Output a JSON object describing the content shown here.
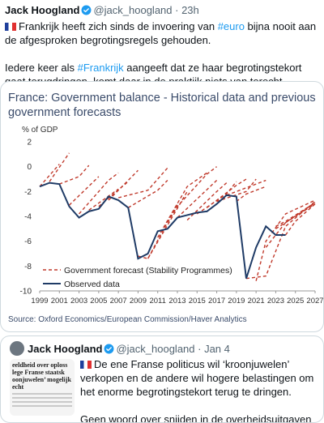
{
  "tweet": {
    "author_name": "Jack Hoogland",
    "handle": "@jack_hoogland",
    "time": "23h",
    "line1_pre": "Frankrijk heeft zich sinds de invoering van ",
    "line1_tag": "#euro",
    "line1_post": " bijna nooit aan de afgesproken begrotingsregels gehouden.",
    "line2_pre": "Iedere keer als ",
    "line2_tag": "#Frankrijk",
    "line2_post": " aangeeft dat ze haar begrotingstekort gaat terugdringen, komt daar in de praktijk niets van terecht."
  },
  "chart_image": {
    "title_line1": "France: Government balance - Historical data and previous",
    "title_line2": "government forecasts",
    "unit": "% of GDP",
    "legend_forecast": "Government forecast (Stability Programmes)",
    "legend_observed": "Observed data",
    "source": "Source: Oxford Economics/European Commission/Haver Analytics"
  },
  "chart_data": {
    "type": "line",
    "title": "France: Government balance - Historical data and previous government forecasts",
    "ylabel": "% of GDP",
    "xlim": [
      1999,
      2027
    ],
    "ylim": [
      -10,
      2
    ],
    "x_ticks": [
      1999,
      2001,
      2003,
      2005,
      2007,
      2009,
      2011,
      2013,
      2015,
      2017,
      2019,
      2021,
      2023,
      2025,
      2027
    ],
    "y_ticks": [
      2,
      0,
      -2,
      -4,
      -6,
      -8,
      -10
    ],
    "colors": {
      "forecast": "#c0392b",
      "observed": "#1f3b66"
    },
    "series": [
      {
        "name": "Observed data",
        "points": [
          [
            1999,
            -1.6
          ],
          [
            2000,
            -1.3
          ],
          [
            2001,
            -1.4
          ],
          [
            2002,
            -3.2
          ],
          [
            2003,
            -4.1
          ],
          [
            2004,
            -3.6
          ],
          [
            2005,
            -3.4
          ],
          [
            2006,
            -2.4
          ],
          [
            2007,
            -2.7
          ],
          [
            2008,
            -3.3
          ],
          [
            2009,
            -7.4
          ],
          [
            2010,
            -7.0
          ],
          [
            2011,
            -5.2
          ],
          [
            2012,
            -5.0
          ],
          [
            2013,
            -4.1
          ],
          [
            2014,
            -3.9
          ],
          [
            2015,
            -3.7
          ],
          [
            2016,
            -3.6
          ],
          [
            2017,
            -3.0
          ],
          [
            2018,
            -2.3
          ],
          [
            2019,
            -2.4
          ],
          [
            2020,
            -9.0
          ],
          [
            2021,
            -6.5
          ],
          [
            2022,
            -4.8
          ],
          [
            2023,
            -5.5
          ],
          [
            2024,
            -5.5
          ]
        ]
      },
      {
        "name": "Government forecast (Stability Programmes)",
        "forecasts": [
          [
            [
              1999,
              -1.6
            ],
            [
              2001,
              0.2
            ]
          ],
          [
            [
              2000,
              -1.2
            ],
            [
              2002,
              1.1
            ]
          ],
          [
            [
              2001,
              -1.4
            ],
            [
              2003,
              -0.8
            ],
            [
              2004,
              0.1
            ]
          ],
          [
            [
              2002,
              -3.1
            ],
            [
              2005,
              -0.8
            ]
          ],
          [
            [
              2003,
              -3.8
            ],
            [
              2006,
              -1.1
            ],
            [
              2007,
              -0.5
            ]
          ],
          [
            [
              2004,
              -3.5
            ],
            [
              2007,
              -1.8
            ]
          ],
          [
            [
              2005,
              -3.2
            ],
            [
              2008,
              -1.2
            ]
          ],
          [
            [
              2006,
              -2.7
            ],
            [
              2009,
              -0.3
            ]
          ],
          [
            [
              2007,
              -2.5
            ],
            [
              2010,
              -1.9
            ],
            [
              2012,
              -0.1
            ]
          ],
          [
            [
              2008,
              -3.3
            ],
            [
              2011,
              -1.9
            ],
            [
              2012,
              -1.1
            ]
          ],
          [
            [
              2009,
              -7.2
            ],
            [
              2010,
              -7.4
            ],
            [
              2013,
              -3.0
            ]
          ],
          [
            [
              2010,
              -7.4
            ],
            [
              2014,
              -2.0
            ]
          ],
          [
            [
              2011,
              -5.7
            ],
            [
              2014,
              -1.6
            ],
            [
              2016,
              -0.5
            ]
          ],
          [
            [
              2012,
              -4.5
            ],
            [
              2013,
              -3.2
            ],
            [
              2016,
              -0.6
            ],
            [
              2017,
              0.0
            ]
          ],
          [
            [
              2013,
              -4.1
            ],
            [
              2017,
              -1.1
            ]
          ],
          [
            [
              2014,
              -4.3
            ],
            [
              2017,
              -2.0
            ],
            [
              2018,
              -1.3
            ]
          ],
          [
            [
              2015,
              -3.8
            ],
            [
              2018,
              -2.2
            ],
            [
              2019,
              -1.2
            ]
          ],
          [
            [
              2016,
              -3.3
            ],
            [
              2019,
              -1.5
            ],
            [
              2020,
              -1.0
            ]
          ],
          [
            [
              2017,
              -2.8
            ],
            [
              2020,
              -2.0
            ],
            [
              2021,
              -1.0
            ]
          ],
          [
            [
              2018,
              -2.3
            ],
            [
              2022,
              -1.1
            ]
          ],
          [
            [
              2019,
              -2.8
            ],
            [
              2020,
              -2.2
            ],
            [
              2022,
              -1.6
            ]
          ],
          [
            [
              2020,
              -9.0
            ],
            [
              2022,
              -8.8
            ],
            [
              2024,
              -4.8
            ],
            [
              2027,
              -2.8
            ]
          ],
          [
            [
              2021,
              -9.2
            ],
            [
              2022,
              -6.0
            ],
            [
              2024,
              -3.8
            ],
            [
              2027,
              -2.7
            ]
          ],
          [
            [
              2022,
              -6.5
            ],
            [
              2024,
              -4.5
            ],
            [
              2027,
              -2.9
            ]
          ],
          [
            [
              2023,
              -4.8
            ],
            [
              2024,
              -4.4
            ],
            [
              2027,
              -2.9
            ]
          ],
          [
            [
              2023,
              -5.0
            ],
            [
              2025,
              -4.0
            ],
            [
              2027,
              -3.0
            ]
          ],
          [
            [
              2024,
              -5.5
            ],
            [
              2025,
              -4.4
            ],
            [
              2027,
              -3.0
            ]
          ]
        ]
      }
    ],
    "legend": "bottom-left",
    "grid": false
  },
  "quote": {
    "author_name": "Jack Hoogland",
    "handle": "@jack_hoogland",
    "date": "Jan 4",
    "text1": "De ene Franse politicus wil ‘kroonjuwelen’ verkopen en de andere wil hogere belastingen om het enorme begrotingstekort terug te dringen.",
    "text2": "Geen woord over snijden in de overheidsuitgaven die ...",
    "thumb_line1": "eeldheid over oploss",
    "thumb_line2": "lege Franse staatsk",
    "thumb_line3": "oonjuwelen’ mogelijk",
    "thumb_line4": "echt"
  }
}
